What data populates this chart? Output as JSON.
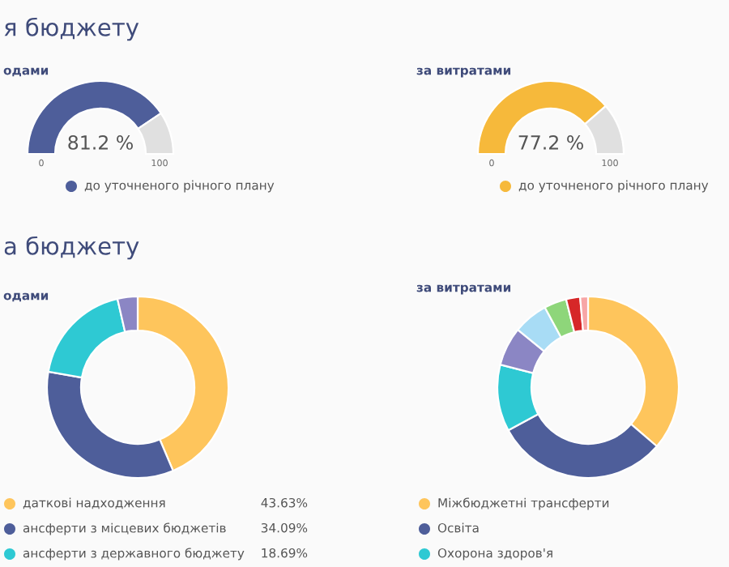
{
  "chart_data": [
    {
      "type": "donut",
      "title": "одами",
      "annotations": [
        "я бюджету",
        "0",
        "100"
      ],
      "categories": [
        "до уточненого річного плану",
        null
      ],
      "values": [
        81.2,
        18.8
      ],
      "colors": [
        "#4e5e9a",
        "#e0e0e0"
      ],
      "value_labels": [
        "81.2 %",
        null
      ],
      "legend": "bottom"
    },
    {
      "type": "donut",
      "title": "за витратами",
      "annotations": [
        "0",
        "100"
      ],
      "categories": [
        "до уточненого річного плану",
        null
      ],
      "values": [
        77.2,
        22.8
      ],
      "colors": [
        "#f6b93b",
        "#e0e0e0"
      ],
      "value_labels": [
        "77.2 %",
        null
      ],
      "legend": "bottom"
    },
    {
      "type": "donut",
      "title": "одами",
      "annotations": [
        "а бюджету"
      ],
      "categories": [
        "даткові надходження",
        "ансферти з місцевих бюджетів",
        "ансферти з державного бюджету",
        null
      ],
      "values": [
        43.63,
        34.09,
        18.69,
        3.59
      ],
      "colors": [
        "#fec55c",
        "#4e5e9a",
        "#2ec9d3",
        "#8b86c4"
      ],
      "value_labels": [
        "43.63%",
        "34.09%",
        "18.69%",
        null
      ],
      "legend": "bottom"
    },
    {
      "type": "donut",
      "title": "за витратами",
      "categories": [
        "Міжбюджетні трансферти",
        "Освіта",
        "Охорона здоров'я",
        null,
        null,
        null,
        null,
        null
      ],
      "values": [
        36.3,
        30.8,
        11.9,
        6.9,
        6.2,
        4.0,
        2.5,
        1.4
      ],
      "colors": [
        "#fec55c",
        "#4e5e9a",
        "#2ec9d3",
        "#8b86c4",
        "#a8dcf5",
        "#8ed67a",
        "#d62728",
        "#f7a6a6"
      ],
      "legend": "bottom"
    }
  ]
}
